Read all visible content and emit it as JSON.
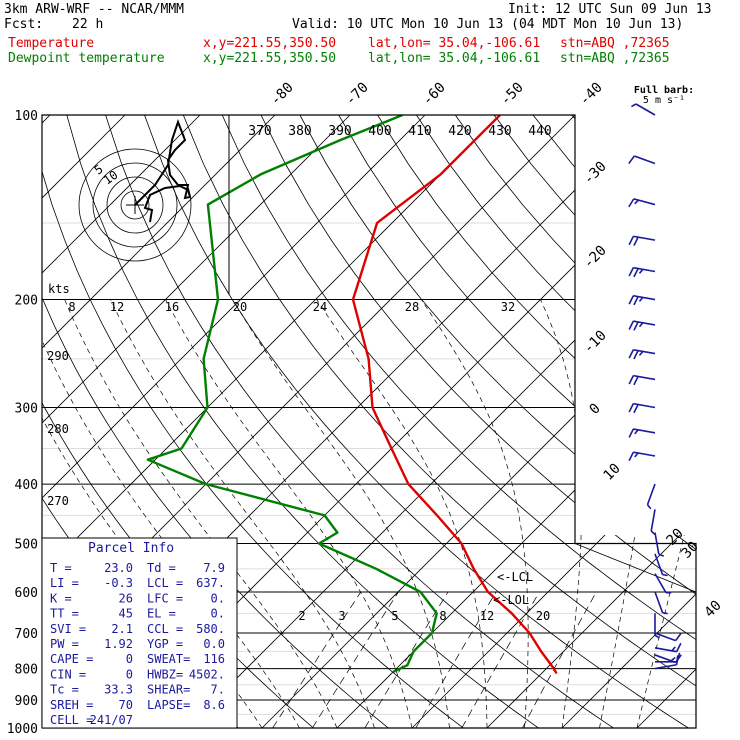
{
  "header": {
    "model": "3km ARW-WRF -- NCAR/MMM",
    "init": "Init: 12 UTC Sun 09 Jun 13",
    "fcst_label": "Fcst:",
    "fcst_value": "22 h",
    "valid": "Valid: 10 UTC Mon 10 Jun 13 (04 MDT Mon 10 Jun 13)",
    "lines": [
      {
        "name": "Temperature",
        "xy": "x,y=221.55,350.50",
        "latlon": "lat,lon= 35.04,-106.61",
        "stn": "stn=ABQ ,72365",
        "color": "#e00000"
      },
      {
        "name": "Dewpoint temperature",
        "xy": "x,y=221.55,350.50",
        "latlon": "lat,lon= 35.04,-106.61",
        "stn": "stn=ABQ ,72365",
        "color": "#008000"
      }
    ]
  },
  "chart_data": {
    "type": "line",
    "pressure_levels": [
      100,
      200,
      300,
      400,
      500,
      600,
      700,
      800,
      900,
      1000
    ],
    "isotherm_labels": [
      "-80",
      "-70",
      "-60",
      "-50",
      "-40",
      "-30",
      "-20",
      "-10",
      "0",
      "10",
      "20",
      "30",
      "40"
    ],
    "theta_labels": [
      "370",
      "380",
      "390",
      "400",
      "410",
      "420",
      "430",
      "440"
    ],
    "theta_side_labels": [
      "290",
      "280",
      "270"
    ],
    "mixing_ratio_labels": [
      "2",
      "3",
      "5",
      "8",
      "12",
      "20"
    ],
    "wind_speed_labels": [
      "8",
      "12",
      "16",
      "20",
      "24",
      "28",
      "32"
    ],
    "kts_label": "kts",
    "barb_legend": "Full barb:\n5 m s⁻¹",
    "lcl_label": "<-LCL",
    "lol_label": "<-LOL",
    "hodograph_rings": [
      "5",
      "10"
    ],
    "series": [
      {
        "name": "Temperature",
        "color": "#e00000",
        "points": [
          [
            100,
            -60
          ],
          [
            125,
            -60
          ],
          [
            150,
            -62
          ],
          [
            200,
            -55
          ],
          [
            250,
            -45
          ],
          [
            300,
            -38
          ],
          [
            350,
            -30
          ],
          [
            400,
            -23
          ],
          [
            450,
            -15
          ],
          [
            500,
            -8
          ],
          [
            550,
            -3
          ],
          [
            600,
            2
          ],
          [
            650,
            8
          ],
          [
            700,
            13
          ],
          [
            750,
            17
          ],
          [
            800,
            21
          ],
          [
            815,
            22
          ]
        ]
      },
      {
        "name": "Dewpoint temperature",
        "color": "#008000",
        "points": [
          [
            100,
            -73
          ],
          [
            110,
            -78
          ],
          [
            125,
            -84
          ],
          [
            140,
            -87
          ],
          [
            200,
            -73
          ],
          [
            250,
            -67
          ],
          [
            300,
            -60
          ],
          [
            350,
            -58
          ],
          [
            365,
            -61
          ],
          [
            400,
            -50
          ],
          [
            450,
            -30
          ],
          [
            480,
            -26
          ],
          [
            500,
            -27
          ],
          [
            550,
            -16
          ],
          [
            600,
            -7
          ],
          [
            650,
            -2
          ],
          [
            700,
            0
          ],
          [
            750,
            0
          ],
          [
            790,
            1
          ],
          [
            810,
            0
          ]
        ]
      }
    ],
    "wind_barbs": [
      {
        "p": 100,
        "spd": 5,
        "dir": 300
      },
      {
        "p": 120,
        "spd": 10,
        "dir": 290
      },
      {
        "p": 140,
        "spd": 15,
        "dir": 285
      },
      {
        "p": 160,
        "spd": 20,
        "dir": 280
      },
      {
        "p": 180,
        "spd": 25,
        "dir": 280
      },
      {
        "p": 200,
        "spd": 25,
        "dir": 280
      },
      {
        "p": 220,
        "spd": 25,
        "dir": 280
      },
      {
        "p": 245,
        "spd": 25,
        "dir": 280
      },
      {
        "p": 270,
        "spd": 20,
        "dir": 280
      },
      {
        "p": 300,
        "spd": 20,
        "dir": 280
      },
      {
        "p": 330,
        "spd": 15,
        "dir": 280
      },
      {
        "p": 360,
        "spd": 15,
        "dir": 280
      },
      {
        "p": 400,
        "spd": 5,
        "dir": 200
      },
      {
        "p": 440,
        "spd": 5,
        "dir": 190
      },
      {
        "p": 480,
        "spd": 5,
        "dir": 170
      },
      {
        "p": 520,
        "spd": 5,
        "dir": 160
      },
      {
        "p": 560,
        "spd": 5,
        "dir": 150
      },
      {
        "p": 600,
        "spd": 5,
        "dir": 160
      },
      {
        "p": 650,
        "spd": 5,
        "dir": 180
      },
      {
        "p": 700,
        "spd": 10,
        "dir": 110
      },
      {
        "p": 740,
        "spd": 15,
        "dir": 100
      },
      {
        "p": 760,
        "spd": 15,
        "dir": 110
      },
      {
        "p": 780,
        "spd": 10,
        "dir": 90
      },
      {
        "p": 800,
        "spd": 10,
        "dir": 80
      }
    ]
  },
  "parcel_info": {
    "title": "Parcel Info",
    "rows": [
      [
        "T  =",
        "23.0",
        "Td =",
        "7.9"
      ],
      [
        "LI =",
        "-0.3",
        "LCL =",
        "637."
      ],
      [
        "K  =",
        "26",
        "LFC =",
        "0."
      ],
      [
        "TT =",
        "45",
        "EL  =",
        "0."
      ],
      [
        "SVI =",
        "2.1",
        "CCL =",
        "580."
      ],
      [
        "PW  =",
        "1.92",
        "YGP =",
        "0.0"
      ],
      [
        "CAPE =",
        "0",
        "SWEAT=",
        "116"
      ],
      [
        "CIN  =",
        "0",
        "HWBZ=",
        "4502."
      ],
      [
        "Tc  =",
        "33.3",
        "SHEAR=",
        "7."
      ],
      [
        "SREH =",
        "70",
        "LAPSE=",
        "8.6"
      ],
      [
        "CELL =",
        "241/07",
        "",
        ""
      ]
    ]
  }
}
